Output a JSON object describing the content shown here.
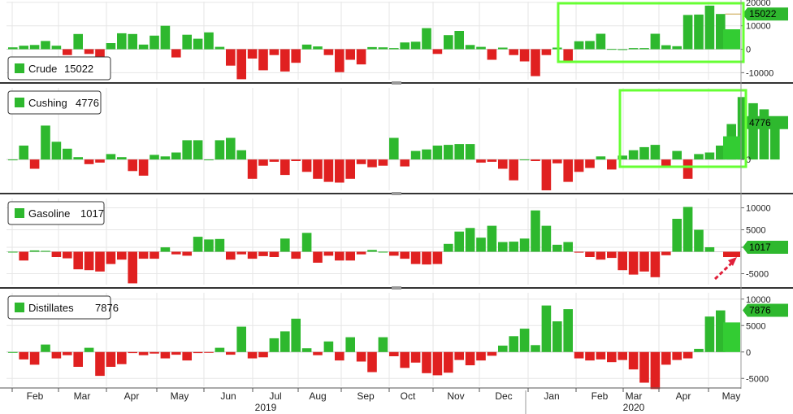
{
  "colors": {
    "positive": "#2eb82e",
    "negative": "#e02020",
    "highlight_box": "#66ff33",
    "grid": "#e6e6e6",
    "projection": "#33cc33",
    "crude_marker_line": "#c8a040",
    "arrow": "#e0203a"
  },
  "x_axis": {
    "months": [
      "Feb",
      "Mar",
      "Apr",
      "May",
      "Jun",
      "Jul",
      "Aug",
      "Sep",
      "Oct",
      "Nov",
      "Dec",
      "Jan",
      "Feb",
      "Mar",
      "Apr",
      "May"
    ],
    "years": [
      "2019",
      "2020"
    ]
  },
  "chart_data": [
    {
      "type": "bar",
      "legend": "Crude",
      "legend_value": "15022",
      "last_value_tag": "15022",
      "projection_value": 8500,
      "yticks": [
        20000,
        10000,
        0,
        -10000
      ],
      "ytick_labels": [
        "20000",
        "10000",
        "0",
        "-10000"
      ],
      "ylim": [
        -13000,
        21000
      ],
      "values": [
        800,
        1500,
        1800,
        3500,
        1500,
        -2500,
        6500,
        -2000,
        -4200,
        2600,
        6800,
        6500,
        2000,
        5800,
        10000,
        -3500,
        6200,
        4500,
        7200,
        1000,
        -7000,
        -12800,
        -4000,
        -9000,
        -2500,
        -9500,
        -5800,
        2000,
        1200,
        -2500,
        -9800,
        -4500,
        -6500,
        900,
        800,
        500,
        2900,
        3200,
        9000,
        -2000,
        6000,
        7800,
        1800,
        1000,
        -4500,
        700,
        -2500,
        -5200,
        -11500,
        -2500,
        700,
        -5400,
        3400,
        3500,
        6600,
        100,
        0,
        500,
        500,
        6600,
        1700,
        1300,
        14600,
        14800,
        18600,
        15022
      ]
    },
    {
      "type": "bar",
      "legend": "Cushing",
      "legend_value": "4776",
      "last_value_tag": "4776",
      "projection_value": 3000,
      "yticks": [
        0
      ],
      "ytick_labels": [
        "0"
      ],
      "ylim": [
        -4000,
        9500
      ],
      "values": [
        0,
        1800,
        -1200,
        4400,
        2300,
        1400,
        300,
        -600,
        -400,
        700,
        300,
        -1500,
        -2100,
        600,
        400,
        900,
        2500,
        2500,
        0,
        2500,
        2800,
        1200,
        -2500,
        -800,
        -300,
        -2000,
        -200,
        -1600,
        -2500,
        -2900,
        -3000,
        -2500,
        -600,
        -1000,
        -800,
        2800,
        -900,
        1100,
        1300,
        1800,
        1900,
        2000,
        2000,
        -400,
        -300,
        -1200,
        -2700,
        0,
        -200,
        -4000,
        -500,
        -2900,
        -1600,
        -1100,
        400,
        -1300,
        500,
        1200,
        1600,
        1900,
        -900,
        1100,
        -2500,
        700,
        900,
        1800,
        4600,
        8100,
        7300,
        6500,
        4776
      ]
    },
    {
      "type": "bar",
      "legend": "Gasoline",
      "legend_value": "1017",
      "last_value_tag": "1017",
      "projection_value": -1200,
      "yticks": [
        10000,
        5000,
        1017,
        -5000
      ],
      "ytick_labels": [
        "10000",
        "5000",
        "1017",
        "-5000"
      ],
      "ylim": [
        -7500,
        12500
      ],
      "values": [
        0,
        -2000,
        300,
        200,
        -1200,
        -1500,
        -4000,
        -4200,
        -4500,
        -2800,
        -1800,
        -7200,
        -1600,
        -1600,
        1000,
        -600,
        -900,
        3400,
        2800,
        2900,
        -1800,
        -600,
        -1600,
        -1000,
        -1200,
        3000,
        -1600,
        4300,
        -2500,
        -900,
        -2000,
        -2000,
        -600,
        400,
        0,
        -900,
        -1600,
        -2800,
        -2900,
        -2800,
        1800,
        4600,
        5400,
        3200,
        5900,
        2200,
        2300,
        3000,
        9400,
        5900,
        1600,
        2200,
        -200,
        -1200,
        -1800,
        -1400,
        -4200,
        -5200,
        -4500,
        -5800,
        -800,
        7500,
        10200,
        5000,
        1017
      ]
    },
    {
      "type": "bar",
      "legend": "Distillates",
      "legend_value": "7876",
      "last_value_tag": "7876",
      "projection_value": 5600,
      "yticks": [
        10000,
        5000,
        0,
        -5000
      ],
      "ytick_labels": [
        "10000",
        "5000",
        "0",
        "-5000"
      ],
      "ylim": [
        -6500,
        11500
      ],
      "values": [
        0,
        -1400,
        -2400,
        1400,
        -1200,
        -600,
        -2800,
        800,
        -4500,
        -2800,
        -2300,
        -200,
        -600,
        -300,
        -1200,
        -500,
        -1600,
        -200,
        -100,
        800,
        -500,
        4800,
        -1200,
        -1000,
        2600,
        3900,
        6300,
        700,
        -600,
        2000,
        -1600,
        2800,
        -1800,
        -3800,
        2800,
        -800,
        -3000,
        -2000,
        -4000,
        -4400,
        -3900,
        -1500,
        -2500,
        -1600,
        -700,
        1200,
        3000,
        4400,
        1300,
        8800,
        5800,
        8100,
        -1200,
        -1600,
        -1400,
        -1900,
        -1500,
        -3300,
        -5800,
        -7000,
        -2400,
        -1500,
        -1200,
        600,
        6700,
        7876
      ]
    }
  ]
}
